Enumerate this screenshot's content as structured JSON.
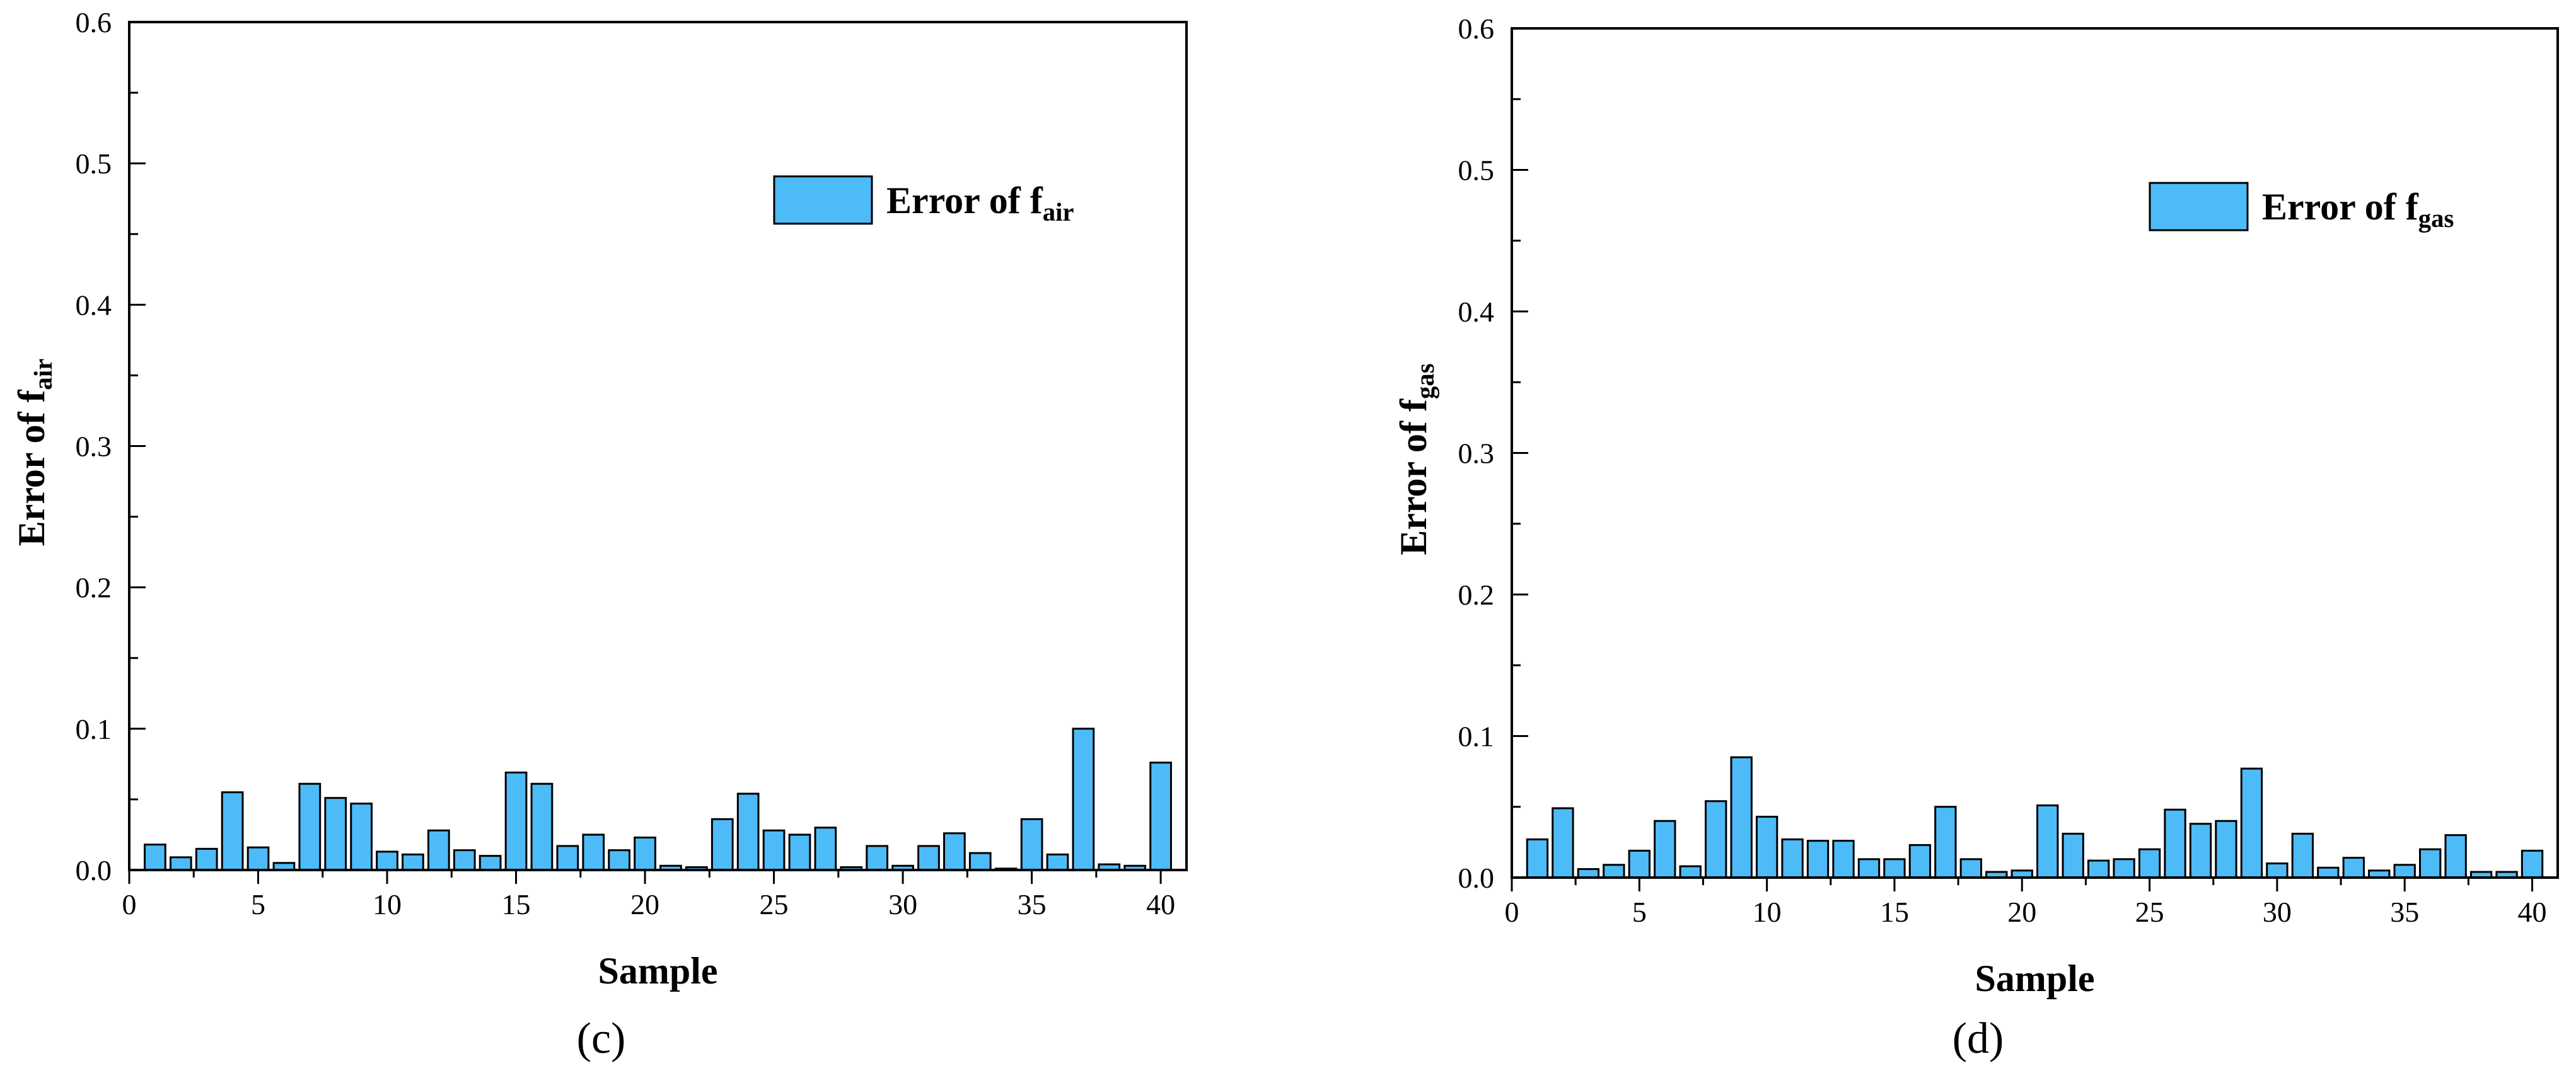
{
  "chart_data": [
    {
      "type": "bar",
      "panel_label": "(c)",
      "xlabel": "Sample",
      "ylabel": {
        "base": "Error of f",
        "sub": "air"
      },
      "legend": {
        "base": "Error of f",
        "sub": "air",
        "position": "top-right"
      },
      "xlim": [
        0,
        41
      ],
      "ylim": [
        0,
        0.6
      ],
      "xticks": [
        0,
        5,
        10,
        15,
        20,
        25,
        30,
        35,
        40
      ],
      "yticks": [
        0.0,
        0.1,
        0.2,
        0.3,
        0.4,
        0.5,
        0.6
      ],
      "ytick_labels": [
        "0.0",
        "0.1",
        "0.2",
        "0.3",
        "0.4",
        "0.5",
        "0.6"
      ],
      "grid": false,
      "bar_color": "#4dbbf7",
      "x": [
        1,
        2,
        3,
        4,
        5,
        6,
        7,
        8,
        9,
        10,
        11,
        12,
        13,
        14,
        15,
        16,
        17,
        18,
        19,
        20,
        21,
        22,
        23,
        24,
        25,
        26,
        27,
        28,
        29,
        30,
        31,
        32,
        33,
        34,
        35,
        36,
        37,
        38,
        39,
        40
      ],
      "values": [
        0.018,
        0.009,
        0.015,
        0.055,
        0.016,
        0.005,
        0.061,
        0.051,
        0.047,
        0.013,
        0.011,
        0.028,
        0.014,
        0.01,
        0.069,
        0.061,
        0.017,
        0.025,
        0.014,
        0.023,
        0.003,
        0.002,
        0.036,
        0.054,
        0.028,
        0.025,
        0.03,
        0.002,
        0.017,
        0.003,
        0.017,
        0.026,
        0.012,
        0.001,
        0.036,
        0.011,
        0.1,
        0.004,
        0.003,
        0.076
      ]
    },
    {
      "type": "bar",
      "panel_label": "(d)",
      "xlabel": "Sample",
      "ylabel": {
        "base": "Error of f",
        "sub": "gas"
      },
      "legend": {
        "base": "Error of f",
        "sub": "gas",
        "position": "top-right"
      },
      "xlim": [
        0,
        41
      ],
      "ylim": [
        0,
        0.6
      ],
      "xticks": [
        0,
        5,
        10,
        15,
        20,
        25,
        30,
        35,
        40
      ],
      "yticks": [
        0.0,
        0.1,
        0.2,
        0.3,
        0.4,
        0.5,
        0.6
      ],
      "ytick_labels": [
        "0.0",
        "0.1",
        "0.2",
        "0.3",
        "0.4",
        "0.5",
        "0.6"
      ],
      "grid": false,
      "bar_color": "#4dbbf7",
      "x": [
        1,
        2,
        3,
        4,
        5,
        6,
        7,
        8,
        9,
        10,
        11,
        12,
        13,
        14,
        15,
        16,
        17,
        18,
        19,
        20,
        21,
        22,
        23,
        24,
        25,
        26,
        27,
        28,
        29,
        30,
        31,
        32,
        33,
        34,
        35,
        36,
        37,
        38,
        39,
        40
      ],
      "values": [
        0.027,
        0.049,
        0.006,
        0.009,
        0.019,
        0.04,
        0.008,
        0.054,
        0.085,
        0.043,
        0.027,
        0.026,
        0.026,
        0.013,
        0.013,
        0.023,
        0.05,
        0.013,
        0.004,
        0.005,
        0.051,
        0.031,
        0.012,
        0.013,
        0.02,
        0.048,
        0.038,
        0.04,
        0.077,
        0.01,
        0.031,
        0.007,
        0.014,
        0.005,
        0.009,
        0.02,
        0.03,
        0.004,
        0.004,
        0.019
      ]
    }
  ]
}
